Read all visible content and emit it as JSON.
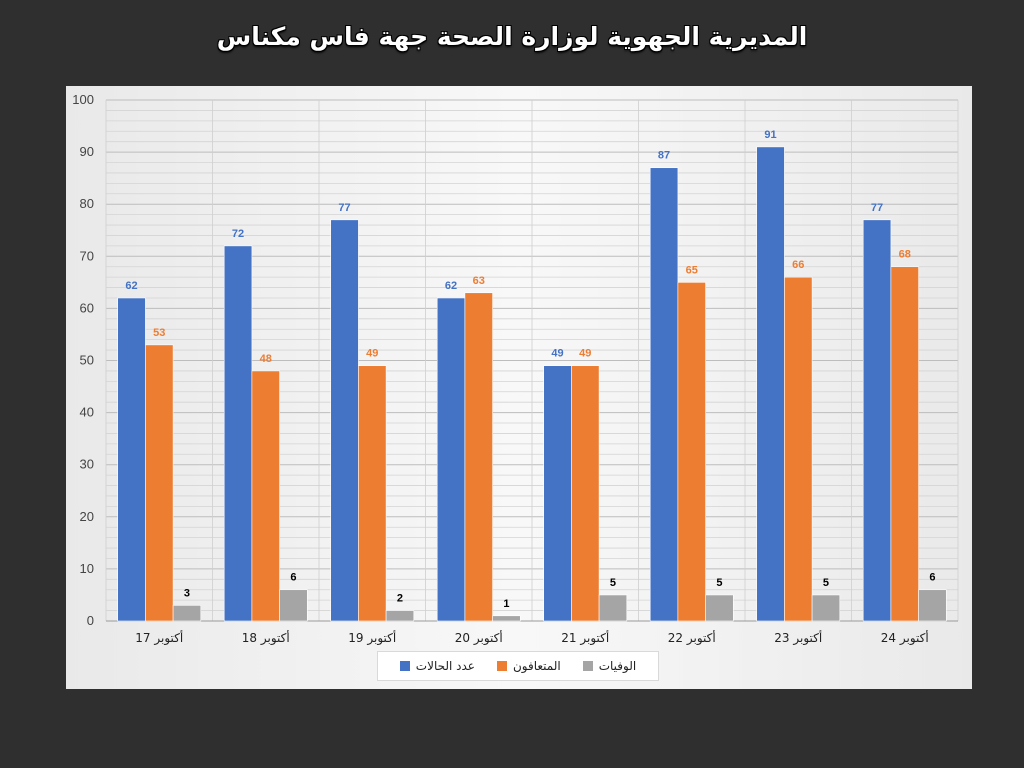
{
  "slide": {
    "title": "المديرية الجهوية لوزارة الصحة جهة فاس مكناس"
  },
  "colors": {
    "background": "#2f2f2f",
    "plot_panel": "#f2f2f2",
    "series_cases": "#4472c4",
    "series_recovered": "#ed7d31",
    "series_deaths": "#a5a5a5"
  },
  "chart_data": {
    "type": "bar",
    "title": "",
    "xlabel": "",
    "ylabel": "",
    "ylim": [
      0,
      100
    ],
    "y_ticks": [
      0,
      10,
      20,
      30,
      40,
      50,
      60,
      70,
      80,
      90,
      100
    ],
    "grid": true,
    "legend_position": "bottom",
    "categories": [
      "17 أكتوبر",
      "18 أكتوبر",
      "19 أكتوبر",
      "20 أكتوبر",
      "21 أكتوبر",
      "22 أكتوبر",
      "23 أكتوبر",
      "24 أكتوبر"
    ],
    "series": [
      {
        "name": "عدد الحالات",
        "color": "#4472c4",
        "label_color": "#4472c4",
        "values": [
          62,
          72,
          77,
          62,
          49,
          87,
          91,
          77
        ]
      },
      {
        "name": "المتعافون",
        "color": "#ed7d31",
        "label_color": "#ed7d31",
        "values": [
          53,
          48,
          49,
          63,
          49,
          65,
          66,
          68
        ]
      },
      {
        "name": "الوفيات",
        "color": "#a5a5a5",
        "label_color": "#000000",
        "values": [
          3,
          6,
          2,
          1,
          5,
          5,
          5,
          6
        ]
      }
    ]
  }
}
